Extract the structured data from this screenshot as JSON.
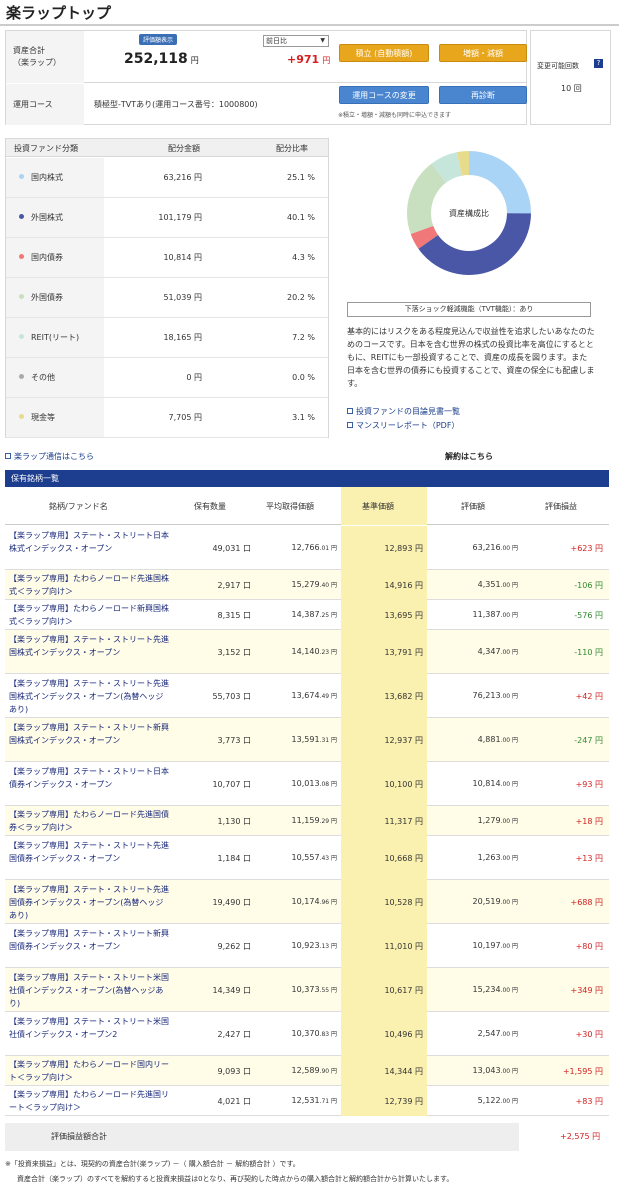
{
  "page": {
    "title": "楽ラップトップ"
  },
  "summary": {
    "asset_label": "資産合計\n（楽ラップ）",
    "badge": "評価額表示",
    "asset_value": "252,118",
    "unit_yen": "円",
    "compare_select": "前日比",
    "change_value": "+971",
    "course_label": "運用コース",
    "course_text": "積極型-TVTあり(運用コース番号：1000800)",
    "btn_invest": "積立 (自動積額)",
    "btn_addreduce": "増額・減額",
    "btn_course_change": "運用コースの変更",
    "btn_rediagnose": "再診断",
    "note": "※積立・増額・減額も同時に申込できます",
    "change_count_label": "変更可能回数",
    "change_count": "10 回"
  },
  "allocation": {
    "headers": [
      "投資ファンド分類",
      "配分金額",
      "配分比率"
    ],
    "rows": [
      {
        "name": "国内株式",
        "amount": "63,216 円",
        "pct": "25.1 %",
        "color": "#a9d4f5"
      },
      {
        "name": "外国株式",
        "amount": "101,179 円",
        "pct": "40.1 %",
        "color": "#4a56a6"
      },
      {
        "name": "国内債券",
        "amount": "10,814 円",
        "pct": "4.3 %",
        "color": "#f07878"
      },
      {
        "name": "外国債券",
        "amount": "51,039 円",
        "pct": "20.2 %",
        "color": "#c8e0c0"
      },
      {
        "name": "REIT(リート)",
        "amount": "18,165 円",
        "pct": "7.2 %",
        "color": "#c6e6dc"
      },
      {
        "name": "その他",
        "amount": "0 円",
        "pct": "0.0 %",
        "color": "#aaaaaa"
      },
      {
        "name": "現金等",
        "amount": "7,705 円",
        "pct": "3.1 %",
        "color": "#e6dc8c"
      }
    ]
  },
  "chart_data": {
    "type": "pie",
    "title": "資産構成比",
    "categories": [
      "国内株式",
      "外国株式",
      "国内債券",
      "外国債券",
      "REIT(リート)",
      "その他",
      "現金等"
    ],
    "values": [
      25.1,
      40.1,
      4.3,
      20.2,
      7.2,
      0.0,
      3.1
    ],
    "colors": [
      "#a9d4f5",
      "#4a56a6",
      "#f07878",
      "#c8e0c0",
      "#c6e6dc",
      "#aaaaaa",
      "#e6dc8c"
    ]
  },
  "right": {
    "tvt": "下落ショック軽減機能（TVT機能）：あり",
    "desc": "基本的にはリスクをある程度見込んで収益性を追求したいあなたのためのコースです。日本を含む世界の株式の投資比率を高位にするとともに、REITにも一部投資することで、資産の成長を図ります。また日本を含む世界の債券にも投資することで、資産の保全にも配慮します。",
    "link1": "投資ファンドの目論見書一覧",
    "link2": "マンスリーレポート（PDF）"
  },
  "links": {
    "news": "楽ラップ通信はこちら",
    "cancel": "解約はこちら"
  },
  "holdings": {
    "bar_title": "保有銘柄一覧",
    "headers": [
      "銘柄/ファンド名",
      "保有数量",
      "平均取得価額",
      "基準価額",
      "評価額",
      "評価損益"
    ],
    "rows": [
      {
        "name": "【楽ラップ専用】ステート・ストリート日本株式インデックス・オープン",
        "qty": "49,031 口",
        "avg": "12,766",
        "avg_dec": ".01 円",
        "base": "12,893 円",
        "val": "63,216",
        "val_dec": ".00 円",
        "pl": "+623 円",
        "neg": false
      },
      {
        "name": "【楽ラップ専用】たわらノーロード先進国株式＜ラップ向け＞",
        "qty": "2,917 口",
        "avg": "15,279",
        "avg_dec": ".40 円",
        "base": "14,916 円",
        "val": "4,351",
        "val_dec": ".00 円",
        "pl": "-106 円",
        "neg": true
      },
      {
        "name": "【楽ラップ専用】たわらノーロード新興国株式＜ラップ向け＞",
        "qty": "8,315 口",
        "avg": "14,387",
        "avg_dec": ".25 円",
        "base": "13,695 円",
        "val": "11,387",
        "val_dec": ".00 円",
        "pl": "-576 円",
        "neg": true
      },
      {
        "name": "【楽ラップ専用】ステート・ストリート先進国株式インデックス・オープン",
        "qty": "3,152 口",
        "avg": "14,140",
        "avg_dec": ".23 円",
        "base": "13,791 円",
        "val": "4,347",
        "val_dec": ".00 円",
        "pl": "-110 円",
        "neg": true
      },
      {
        "name": "【楽ラップ専用】ステート・ストリート先進国株式インデックス・オープン(為替ヘッジあり)",
        "qty": "55,703 口",
        "avg": "13,674",
        "avg_dec": ".49 円",
        "base": "13,682 円",
        "val": "76,213",
        "val_dec": ".00 円",
        "pl": "+42 円",
        "neg": false
      },
      {
        "name": "【楽ラップ専用】ステート・ストリート新興国株式インデックス・オープン",
        "qty": "3,773 口",
        "avg": "13,591",
        "avg_dec": ".31 円",
        "base": "12,937 円",
        "val": "4,881",
        "val_dec": ".00 円",
        "pl": "-247 円",
        "neg": true
      },
      {
        "name": "【楽ラップ専用】ステート・ストリート日本債券インデックス・オープン",
        "qty": "10,707 口",
        "avg": "10,013",
        "avg_dec": ".08 円",
        "base": "10,100 円",
        "val": "10,814",
        "val_dec": ".00 円",
        "pl": "+93 円",
        "neg": false
      },
      {
        "name": "【楽ラップ専用】たわらノーロード先進国債券＜ラップ向け＞",
        "qty": "1,130 口",
        "avg": "11,159",
        "avg_dec": ".29 円",
        "base": "11,317 円",
        "val": "1,279",
        "val_dec": ".00 円",
        "pl": "+18 円",
        "neg": false
      },
      {
        "name": "【楽ラップ専用】ステート・ストリート先進国債券インデックス・オープン",
        "qty": "1,184 口",
        "avg": "10,557",
        "avg_dec": ".43 円",
        "base": "10,668 円",
        "val": "1,263",
        "val_dec": ".00 円",
        "pl": "+13 円",
        "neg": false
      },
      {
        "name": "【楽ラップ専用】ステート・ストリート先進国債券インデックス・オープン(為替ヘッジあり)",
        "qty": "19,490 口",
        "avg": "10,174",
        "avg_dec": ".96 円",
        "base": "10,528 円",
        "val": "20,519",
        "val_dec": ".00 円",
        "pl": "+688 円",
        "neg": false
      },
      {
        "name": "【楽ラップ専用】ステート・ストリート新興国債券インデックス・オープン",
        "qty": "9,262 口",
        "avg": "10,923",
        "avg_dec": ".13 円",
        "base": "11,010 円",
        "val": "10,197",
        "val_dec": ".00 円",
        "pl": "+80 円",
        "neg": false
      },
      {
        "name": "【楽ラップ専用】ステート・ストリート米国社債インデックス・オープン(為替ヘッジあり)",
        "qty": "14,349 口",
        "avg": "10,373",
        "avg_dec": ".55 円",
        "base": "10,617 円",
        "val": "15,234",
        "val_dec": ".00 円",
        "pl": "+349 円",
        "neg": false
      },
      {
        "name": "【楽ラップ専用】ステート・ストリート米国社債インデックス・オープン2",
        "qty": "2,427 口",
        "avg": "10,370",
        "avg_dec": ".83 円",
        "base": "10,496 円",
        "val": "2,547",
        "val_dec": ".00 円",
        "pl": "+30 円",
        "neg": false
      },
      {
        "name": "【楽ラップ専用】たわらノーロード国内リート＜ラップ向け＞",
        "qty": "9,093 口",
        "avg": "12,589",
        "avg_dec": ".90 円",
        "base": "14,344 円",
        "val": "13,043",
        "val_dec": ".00 円",
        "pl": "+1,595 円",
        "neg": false
      },
      {
        "name": "【楽ラップ専用】たわらノーロード先進国リート＜ラップ向け＞",
        "qty": "4,021 口",
        "avg": "12,531",
        "avg_dec": ".71 円",
        "base": "12,739 円",
        "val": "5,122",
        "val_dec": ".00 円",
        "pl": "+83 円",
        "neg": false
      }
    ],
    "total_label": "評価損益額合計",
    "total_value": "+2,575 円"
  },
  "footnotes": {
    "line1": "※「投資来損益」とは、現契約の資産合計(楽ラップ) －（ 購入額合計 － 解約額合計 ）です。",
    "line2": "資産合計（楽ラップ）のすべてを解約すると投資来損益は0となり、再び契約した時点からの購入額合計と解約額合計から計算いたします。"
  }
}
